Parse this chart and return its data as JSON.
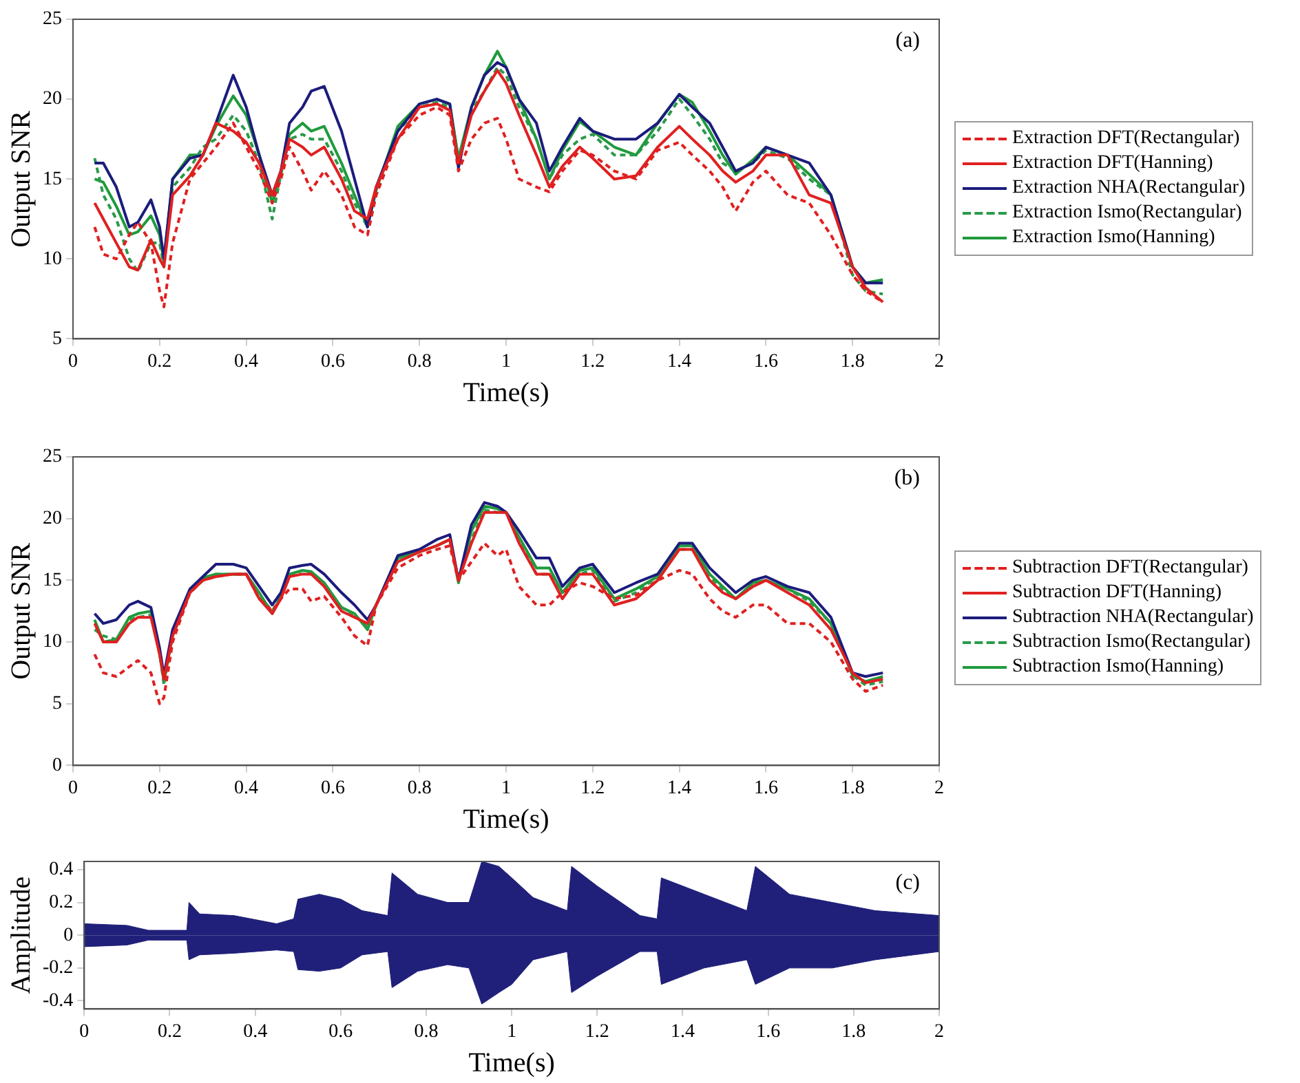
{
  "chart_data": [
    {
      "type": "line",
      "xlabel": "Time(s)",
      "ylabel": "Output SNR",
      "annotations": [
        "(a)"
      ],
      "xlim": [
        0,
        2
      ],
      "xticks": [
        0,
        0.2,
        0.4,
        0.6,
        0.8,
        1,
        1.2,
        1.4,
        1.6,
        1.8,
        2
      ],
      "ylim": [
        5,
        25
      ],
      "yticks": [
        5,
        10,
        15,
        20,
        25
      ],
      "grid": false,
      "legend": "right",
      "marker": "none",
      "x": [
        0.05,
        0.07,
        0.1,
        0.13,
        0.15,
        0.18,
        0.2,
        0.21,
        0.23,
        0.27,
        0.3,
        0.33,
        0.37,
        0.4,
        0.43,
        0.46,
        0.48,
        0.5,
        0.53,
        0.55,
        0.58,
        0.62,
        0.65,
        0.68,
        0.7,
        0.75,
        0.8,
        0.84,
        0.87,
        0.89,
        0.92,
        0.95,
        0.98,
        1.0,
        1.03,
        1.07,
        1.1,
        1.13,
        1.17,
        1.2,
        1.25,
        1.3,
        1.35,
        1.4,
        1.43,
        1.47,
        1.5,
        1.53,
        1.57,
        1.6,
        1.65,
        1.7,
        1.75,
        1.8,
        1.83,
        1.87
      ],
      "series": [
        {
          "name": "Extraction DFT(Rectangular)",
          "color": "#e02020",
          "line_style": "dashed",
          "values": [
            12,
            10.3,
            10,
            11.5,
            12.3,
            11,
            8,
            7,
            11,
            15,
            16,
            17,
            18.5,
            17,
            15.5,
            13.5,
            15,
            17,
            15.5,
            14.3,
            15.5,
            14,
            12,
            11.5,
            14,
            17.5,
            19,
            19.5,
            19,
            15.5,
            17.5,
            18.5,
            18.8,
            17.5,
            15,
            14.5,
            14.2,
            15.5,
            16.8,
            16.5,
            15.5,
            15,
            16.8,
            17.3,
            16.5,
            15.5,
            14.5,
            13,
            14.8,
            15.5,
            14,
            13.5,
            11.5,
            9,
            8,
            7.3
          ]
        },
        {
          "name": "Extraction DFT(Hanning)",
          "color": "#e02020",
          "line_style": "solid",
          "values": [
            13.5,
            12.5,
            11,
            9.5,
            9.3,
            11.2,
            10,
            9.5,
            14,
            15.2,
            16.5,
            18.5,
            18,
            17.3,
            16,
            14,
            15.5,
            17.5,
            17,
            16.5,
            17,
            15,
            13,
            12.5,
            14.5,
            17.5,
            19.5,
            19.7,
            19.3,
            16,
            19,
            20.5,
            21.8,
            21,
            19,
            16.5,
            14.5,
            15.8,
            17,
            16.3,
            15,
            15.2,
            17,
            18.3,
            17.5,
            16.5,
            15.5,
            14.8,
            15.5,
            16.5,
            16.5,
            14,
            13.5,
            9.5,
            8.2,
            7.3
          ]
        },
        {
          "name": "Extraction NHA(Rectangular)",
          "color": "#1c1c7c",
          "line_style": "solid",
          "values": [
            16,
            16,
            14.5,
            12,
            12.3,
            13.7,
            12,
            10,
            15,
            16.3,
            16.5,
            18.5,
            21.5,
            19.5,
            16.5,
            14,
            15.5,
            18.5,
            19.5,
            20.5,
            20.8,
            18,
            15,
            12,
            14.5,
            18,
            19.7,
            20,
            19.7,
            15.7,
            19.5,
            21.5,
            22.3,
            22,
            20,
            18.5,
            15.5,
            17,
            18.8,
            18,
            17.5,
            17.5,
            18.5,
            20.3,
            19.5,
            18.5,
            17,
            15.5,
            16,
            17,
            16.5,
            16,
            14,
            9.5,
            8.5,
            8.5
          ]
        },
        {
          "name": "Extraction Ismo(Rectangular)",
          "color": "#2a9a4a",
          "line_style": "dashed",
          "values": [
            16.3,
            14,
            12.5,
            10,
            9.2,
            11,
            11,
            9.5,
            14.5,
            15.7,
            17,
            17.5,
            19,
            18,
            16,
            12.5,
            15.3,
            17.5,
            17.8,
            17.5,
            17.5,
            15.5,
            13.5,
            12,
            14,
            18,
            19.5,
            19.8,
            19.5,
            16.3,
            19.3,
            20.5,
            22,
            21.5,
            19.5,
            17.5,
            15,
            16.5,
            17.5,
            17.8,
            16.5,
            16.5,
            18,
            20,
            19,
            17.5,
            16,
            15.5,
            16,
            16.8,
            16.3,
            15,
            14,
            9,
            8,
            7.8
          ]
        },
        {
          "name": "Extraction Ismo(Hanning)",
          "color": "#1f9a3c",
          "line_style": "solid",
          "values": [
            15,
            14.8,
            13.3,
            11.5,
            11.7,
            12.7,
            11.5,
            9.8,
            15,
            16.5,
            16.5,
            18.3,
            20.2,
            19,
            16.5,
            13.5,
            15.5,
            17.8,
            18.5,
            18,
            18.3,
            16,
            14,
            12,
            14.3,
            18.3,
            19.7,
            20,
            19.7,
            16.3,
            19.5,
            21.5,
            23,
            22,
            20,
            17.5,
            15,
            16.8,
            18.6,
            18,
            17,
            16.5,
            18.5,
            20.3,
            19.8,
            18,
            16.5,
            15.3,
            16.2,
            17,
            16.5,
            15.3,
            14,
            9.5,
            8.5,
            8.7
          ]
        }
      ]
    },
    {
      "type": "line",
      "xlabel": "Time(s)",
      "ylabel": "Output SNR",
      "annotations": [
        "(b)"
      ],
      "xlim": [
        0,
        2
      ],
      "xticks": [
        0,
        0.2,
        0.4,
        0.6,
        0.8,
        1,
        1.2,
        1.4,
        1.6,
        1.8,
        2
      ],
      "ylim": [
        0,
        25
      ],
      "yticks": [
        0,
        5,
        10,
        15,
        20,
        25
      ],
      "grid": false,
      "legend": "right",
      "marker": "none",
      "x": [
        0.05,
        0.07,
        0.1,
        0.13,
        0.15,
        0.18,
        0.2,
        0.21,
        0.23,
        0.27,
        0.3,
        0.33,
        0.37,
        0.4,
        0.43,
        0.46,
        0.48,
        0.5,
        0.53,
        0.55,
        0.58,
        0.62,
        0.65,
        0.68,
        0.7,
        0.75,
        0.8,
        0.84,
        0.87,
        0.89,
        0.92,
        0.95,
        0.98,
        1.0,
        1.03,
        1.07,
        1.1,
        1.13,
        1.17,
        1.2,
        1.25,
        1.3,
        1.35,
        1.4,
        1.43,
        1.47,
        1.5,
        1.53,
        1.57,
        1.6,
        1.65,
        1.7,
        1.75,
        1.8,
        1.83,
        1.87
      ],
      "series": [
        {
          "name": "Subtraction DFT(Rectangular)",
          "color": "#e02020",
          "line_style": "dashed",
          "values": [
            9,
            7.5,
            7.2,
            8,
            8.5,
            7.5,
            5,
            5.5,
            10,
            14,
            15,
            15.3,
            15.5,
            15.5,
            13.5,
            12.5,
            13.5,
            14.3,
            14.3,
            13.3,
            13.7,
            12,
            10.5,
            9.7,
            13,
            16,
            17,
            17.5,
            17.8,
            15,
            16.5,
            18,
            17,
            17.5,
            14.5,
            13,
            13,
            14,
            14.8,
            14.5,
            13.5,
            13.8,
            15,
            15.8,
            15.5,
            13.5,
            12.5,
            12,
            13,
            13,
            11.5,
            11.5,
            10,
            7,
            6,
            6.5
          ]
        },
        {
          "name": "Subtraction DFT(Hanning)",
          "color": "#e02020",
          "line_style": "solid",
          "values": [
            11.5,
            10,
            10,
            11.5,
            12,
            12,
            9,
            7,
            10.5,
            14,
            15,
            15.3,
            15.5,
            15.5,
            13.5,
            12.3,
            13.5,
            15.3,
            15.5,
            15.5,
            14.5,
            12.5,
            12,
            11.5,
            13,
            16.5,
            17.3,
            17.8,
            18.3,
            15,
            18,
            20.5,
            20.5,
            20.5,
            18,
            15.5,
            15.5,
            13.5,
            15.5,
            15.5,
            13,
            13.5,
            15,
            17.5,
            17.5,
            15,
            14,
            13.5,
            14.5,
            15,
            14,
            13,
            11,
            7.5,
            6.7,
            7
          ]
        },
        {
          "name": "Subtraction NHA(Rectangular)",
          "color": "#1c1c7c",
          "line_style": "solid",
          "values": [
            12.3,
            11.5,
            11.8,
            13,
            13.3,
            12.8,
            9.5,
            7.3,
            11,
            14.3,
            15.3,
            16.3,
            16.3,
            16,
            14.5,
            13,
            14,
            16,
            16.2,
            16.3,
            15.5,
            14,
            13,
            11.8,
            13,
            17,
            17.5,
            18.3,
            18.7,
            15,
            19.5,
            21.3,
            21,
            20.5,
            19,
            16.8,
            16.8,
            14.5,
            16,
            16.3,
            14,
            14.8,
            15.5,
            18,
            18,
            16,
            15,
            14,
            15,
            15.3,
            14.5,
            14,
            12,
            7.5,
            7.2,
            7.5
          ]
        },
        {
          "name": "Subtraction Ismo(Rectangular)",
          "color": "#2a9a4a",
          "line_style": "dashed",
          "values": [
            11,
            10.5,
            10.2,
            11.8,
            12,
            12.2,
            9.2,
            6.5,
            10.5,
            14,
            15,
            15.5,
            15.5,
            15.5,
            13.8,
            12.5,
            13.7,
            15.3,
            15.8,
            15.5,
            14.7,
            12.8,
            12.2,
            11.2,
            13,
            16.5,
            17.3,
            17.8,
            18.3,
            15,
            18.3,
            20.7,
            20.5,
            20.5,
            18.3,
            15.5,
            15.5,
            14,
            15.5,
            15.8,
            13.3,
            14,
            15.3,
            17.5,
            17.5,
            15.3,
            14.3,
            13.5,
            14.5,
            15,
            14.3,
            13.3,
            11.5,
            7.3,
            6.5,
            6.8
          ]
        },
        {
          "name": "Subtraction Ismo(Hanning)",
          "color": "#1f9a3c",
          "line_style": "solid",
          "values": [
            11.8,
            10,
            10.2,
            12,
            12.3,
            12.5,
            9,
            6.8,
            10.5,
            14,
            15.2,
            15.5,
            15.5,
            15.5,
            14,
            12.3,
            13.7,
            15.5,
            15.8,
            15.7,
            14.8,
            12.8,
            12.3,
            11,
            13,
            16.8,
            17.3,
            17.8,
            18.3,
            14.8,
            19,
            21,
            20.8,
            20.5,
            18.5,
            16,
            16,
            14,
            15.8,
            16,
            13.5,
            14.3,
            15.3,
            17.8,
            17.8,
            15.5,
            14.5,
            13.5,
            14.8,
            15,
            14.3,
            13.5,
            11.5,
            7.3,
            6.8,
            7.2
          ]
        }
      ]
    },
    {
      "type": "area",
      "xlabel": "Time(s)",
      "ylabel": "Amplitude",
      "annotations": [
        "(c)"
      ],
      "xlim": [
        0,
        2
      ],
      "xticks": [
        0,
        0.2,
        0.4,
        0.6,
        0.8,
        1,
        1.2,
        1.4,
        1.6,
        1.8,
        2
      ],
      "ylim": [
        -0.45,
        0.45
      ],
      "yticks": [
        -0.4,
        -0.2,
        0,
        0.2,
        0.4
      ],
      "grid": false,
      "marker": "none",
      "x": [
        0,
        0.1,
        0.15,
        0.24,
        0.245,
        0.27,
        0.35,
        0.45,
        0.49,
        0.5,
        0.55,
        0.6,
        0.65,
        0.71,
        0.72,
        0.78,
        0.85,
        0.9,
        0.93,
        0.97,
        1.0,
        1.05,
        1.13,
        1.14,
        1.2,
        1.3,
        1.34,
        1.35,
        1.45,
        1.55,
        1.57,
        1.65,
        1.75,
        1.85,
        2.0
      ],
      "series": [
        {
          "color": "#20207a",
          "values": [
            0.07,
            0.06,
            0.03,
            0.03,
            0.2,
            0.13,
            0.12,
            0.07,
            0.1,
            0.22,
            0.25,
            0.22,
            0.15,
            0.12,
            0.38,
            0.25,
            0.2,
            0.2,
            0.45,
            0.42,
            0.35,
            0.23,
            0.15,
            0.42,
            0.3,
            0.12,
            0.1,
            0.35,
            0.25,
            0.15,
            0.42,
            0.25,
            0.2,
            0.15,
            0.12
          ]
        },
        {
          "color": "#20207a",
          "values": [
            -0.07,
            -0.06,
            -0.03,
            -0.03,
            -0.15,
            -0.12,
            -0.11,
            -0.09,
            -0.1,
            -0.21,
            -0.22,
            -0.2,
            -0.12,
            -0.1,
            -0.32,
            -0.22,
            -0.18,
            -0.2,
            -0.42,
            -0.35,
            -0.3,
            -0.15,
            -0.1,
            -0.35,
            -0.25,
            -0.1,
            -0.1,
            -0.3,
            -0.2,
            -0.15,
            -0.3,
            -0.2,
            -0.2,
            -0.15,
            -0.1
          ]
        }
      ]
    }
  ]
}
